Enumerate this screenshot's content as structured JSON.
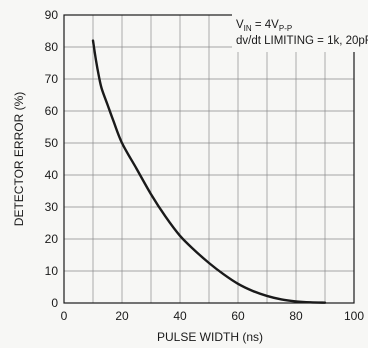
{
  "chart_data": {
    "type": "line",
    "title": "",
    "xlabel": "PULSE WIDTH (ns)",
    "ylabel": "DETECTOR ERROR (%)",
    "xlim": [
      0,
      100
    ],
    "ylim": [
      0,
      90
    ],
    "x_ticks": [
      "0",
      "20",
      "40",
      "60",
      "80",
      "100"
    ],
    "y_ticks": [
      "0",
      "10",
      "20",
      "30",
      "40",
      "50",
      "60",
      "70",
      "80",
      "90"
    ],
    "grid": true,
    "annotations": {
      "line1": {
        "main": "V",
        "sub1": "IN",
        "rest": " = 4V",
        "sub2": "P-P"
      },
      "line2": "dv/dt LIMITING = 1k, 20pF"
    },
    "series": [
      {
        "color": "#1a1a1a",
        "x": [
          10,
          11,
          12,
          13,
          15,
          17,
          20,
          25,
          30,
          35,
          40,
          45,
          50,
          55,
          60,
          65,
          70,
          75,
          80,
          85,
          90
        ],
        "y": [
          82,
          76,
          71,
          67,
          62,
          57,
          50,
          42,
          34,
          27,
          21,
          16.5,
          12.5,
          9,
          6,
          3.8,
          2.2,
          1.1,
          0.5,
          0.2,
          0.1
        ]
      }
    ]
  }
}
